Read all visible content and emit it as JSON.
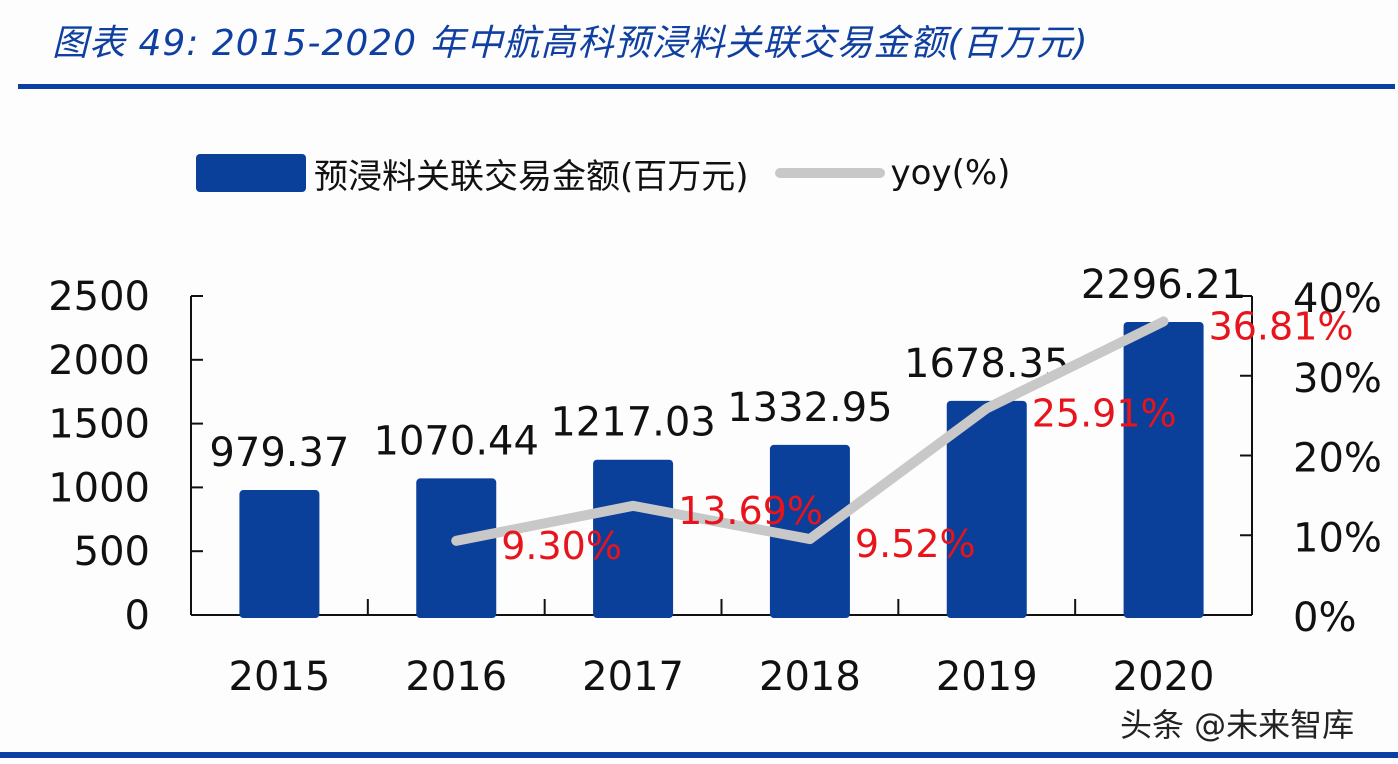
{
  "title": "图表 49:  2015-2020 年中航高科预浸料关联交易金额(百万元)",
  "legend": {
    "bar_label": "预浸料关联交易金额(百万元)",
    "line_label": "yoy(%)"
  },
  "watermark": "头条 @未来智库",
  "colors": {
    "bar": "#0a3f9a",
    "line": "#c8c8c8",
    "yoy_label": "#e8141c",
    "value_label": "#111111",
    "rule": "#0b3fa3"
  },
  "chart_data": {
    "type": "bar",
    "title": "2015-2020 年中航高科预浸料关联交易金额(百万元)",
    "categories": [
      "2015",
      "2016",
      "2017",
      "2018",
      "2019",
      "2020"
    ],
    "series": [
      {
        "name": "预浸料关联交易金额(百万元)",
        "type": "bar",
        "axis": "left",
        "values": [
          979.37,
          1070.44,
          1217.03,
          1332.95,
          1678.35,
          2296.21
        ],
        "labels": [
          "979.37",
          "1070.44",
          "1217.03",
          "1332.95",
          "1678.35",
          "2296.21"
        ]
      },
      {
        "name": "yoy(%)",
        "type": "line",
        "axis": "right",
        "values": [
          null,
          9.3,
          13.69,
          9.52,
          25.91,
          36.81
        ],
        "labels": [
          "",
          "9.30%",
          "13.69%",
          "9.52%",
          "25.91%",
          "36.81%"
        ]
      }
    ],
    "y_left": {
      "ylim": [
        0,
        2500
      ],
      "ticks": [
        "0",
        "500",
        "1000",
        "1500",
        "2000",
        "2500"
      ]
    },
    "y_right": {
      "ylim": [
        0,
        40
      ],
      "ticks": [
        "0%",
        "10%",
        "20%",
        "30%",
        "40%"
      ]
    },
    "xlabel": "",
    "ylabel": "",
    "grid": false,
    "legend_position": "top"
  }
}
